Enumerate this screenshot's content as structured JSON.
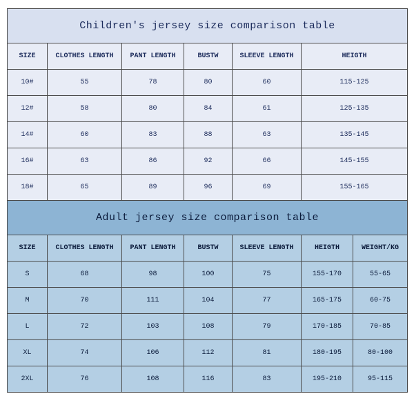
{
  "children_table": {
    "title": "Children's jersey size comparison table",
    "title_bg": "#d8e0f0",
    "header_bg": "#e8ecf6",
    "row_bg": "#e8ecf6",
    "text_color": "#1a2a5a",
    "columns": [
      "SIZE",
      "CLOTHES LENGTH",
      "PANT LENGTH",
      "BUSTW",
      "SLEEVE LENGTH",
      "HEIGTH"
    ],
    "col_widths_class": [
      "c0",
      "c1",
      "c2",
      "c3",
      "c4",
      "c5"
    ],
    "col_span_last": 2,
    "rows": [
      [
        "10#",
        "55",
        "78",
        "80",
        "60",
        "115-125"
      ],
      [
        "12#",
        "58",
        "80",
        "84",
        "61",
        "125-135"
      ],
      [
        "14#",
        "60",
        "83",
        "88",
        "63",
        "135-145"
      ],
      [
        "16#",
        "63",
        "86",
        "92",
        "66",
        "145-155"
      ],
      [
        "18#",
        "65",
        "89",
        "96",
        "69",
        "155-165"
      ]
    ]
  },
  "adult_table": {
    "title": "Adult jersey size comparison table",
    "title_bg": "#8db4d4",
    "header_bg": "#b4cfe4",
    "row_bg": "#b4cfe4",
    "text_color": "#0a1a3a",
    "columns": [
      "SIZE",
      "CLOTHES LENGTH",
      "PANT LENGTH",
      "BUSTW",
      "SLEEVE LENGTH",
      "HEIGTH",
      "WEIGHT/KG"
    ],
    "col_widths_class": [
      "c0",
      "c1",
      "c2",
      "c3",
      "c4",
      "c5",
      "c6"
    ],
    "rows": [
      [
        "S",
        "68",
        "98",
        "100",
        "75",
        "155-170",
        "55-65"
      ],
      [
        "M",
        "70",
        "111",
        "104",
        "77",
        "165-175",
        "60-75"
      ],
      [
        "L",
        "72",
        "103",
        "108",
        "79",
        "170-185",
        "70-85"
      ],
      [
        "XL",
        "74",
        "106",
        "112",
        "81",
        "180-195",
        "80-100"
      ],
      [
        "2XL",
        "76",
        "108",
        "116",
        "83",
        "195-210",
        "95-115"
      ]
    ]
  }
}
